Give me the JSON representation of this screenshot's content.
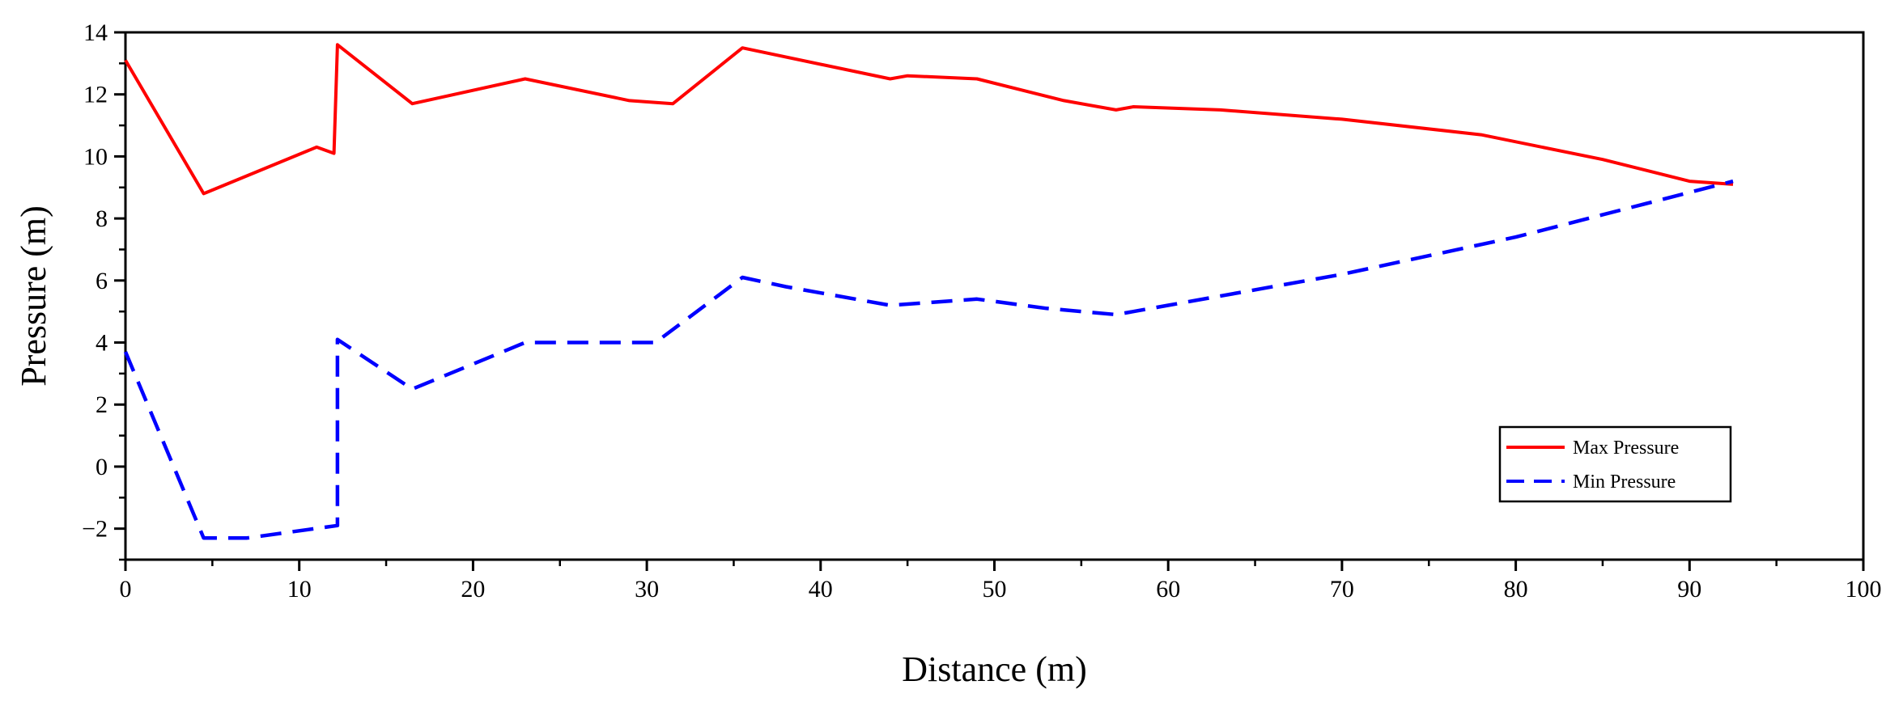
{
  "chart_data": {
    "type": "line",
    "xlabel": "Distance (m)",
    "ylabel": "Pressure (m)",
    "xlim": [
      0,
      100
    ],
    "ylim": [
      -3,
      14
    ],
    "xticks": [
      0,
      10,
      20,
      30,
      40,
      50,
      60,
      70,
      80,
      90,
      100
    ],
    "yticks": [
      -2,
      0,
      2,
      4,
      6,
      8,
      10,
      12,
      14
    ],
    "grid": false,
    "legend": "bottom-right",
    "series": [
      {
        "name": "Max Pressure",
        "color": "#ff0000",
        "style": "solid",
        "x": [
          0,
          4.5,
          11,
          12,
          12.2,
          16.5,
          23,
          29,
          31.5,
          35.5,
          44,
          45,
          49,
          54,
          57,
          58,
          63,
          70,
          78,
          85,
          90,
          92.5
        ],
        "y": [
          13.1,
          8.8,
          10.3,
          10.1,
          13.6,
          11.7,
          12.5,
          11.8,
          11.7,
          13.5,
          12.5,
          12.6,
          12.5,
          11.8,
          11.5,
          11.6,
          11.5,
          11.2,
          10.7,
          9.9,
          9.2,
          9.1
        ]
      },
      {
        "name": "Min Pressure",
        "color": "#0000ff",
        "style": "dashed",
        "x": [
          0,
          4.5,
          7,
          12.2,
          12.2,
          16.5,
          23,
          30.5,
          35.5,
          38,
          44,
          49,
          53,
          57,
          60,
          70,
          80,
          92.5
        ],
        "y": [
          3.7,
          -2.3,
          -2.3,
          -1.9,
          4.1,
          2.5,
          4.0,
          4.0,
          6.1,
          5.8,
          5.2,
          5.4,
          5.1,
          4.9,
          5.2,
          6.2,
          7.4,
          9.2
        ]
      }
    ]
  }
}
